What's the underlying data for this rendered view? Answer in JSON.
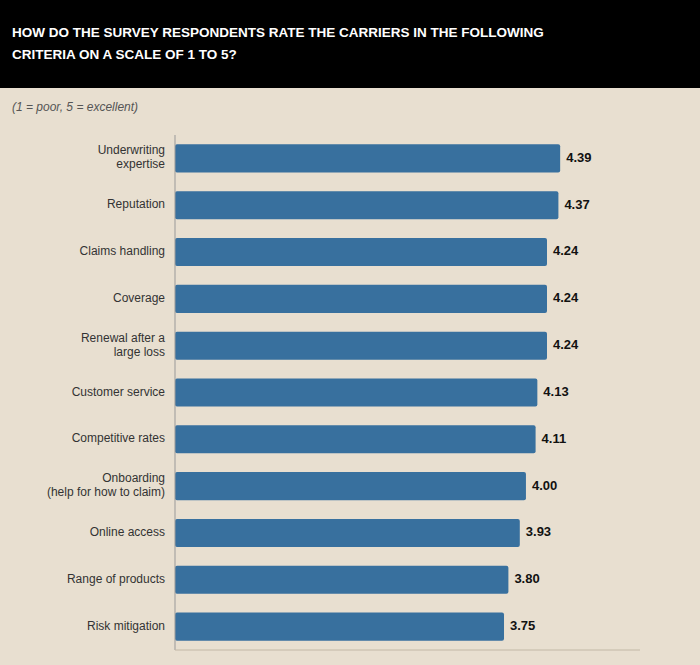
{
  "chart_data": {
    "type": "bar",
    "orientation": "horizontal",
    "title": "HOW DO THE SURVEY RESPONDENTS RATE THE CARRIERS IN THE FOLLOWING\nCRITERIA ON A SCALE OF 1 TO 5?",
    "subtitle": "(1 = poor, 5 = excellent)",
    "categories": [
      "Underwriting\nexpertise",
      "Reputation",
      "Claims handling",
      "Coverage",
      "Renewal after a\nlarge loss",
      "Customer service",
      "Competitive rates",
      "Onboarding\n(help for how to claim)",
      "Online access",
      "Range of products",
      "Risk mitigation"
    ],
    "values": [
      4.39,
      4.37,
      4.24,
      4.24,
      4.24,
      4.13,
      4.11,
      4.0,
      3.93,
      3.8,
      3.75
    ],
    "value_labels": [
      "4.39",
      "4.37",
      "4.24",
      "4.24",
      "4.24",
      "4.13",
      "4.11",
      "4.00",
      "3.93",
      "3.80",
      "3.75"
    ],
    "color": "#38709e",
    "xlim": [
      0,
      5.3
    ],
    "grid": false,
    "data_labels": true,
    "tick_labels": "y"
  }
}
